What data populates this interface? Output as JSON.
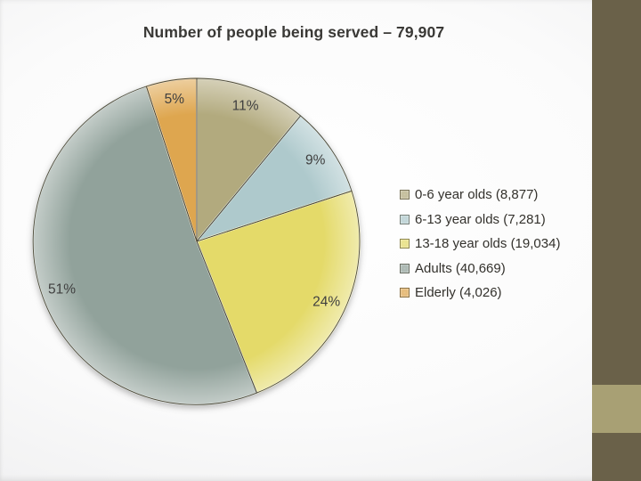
{
  "slide": {
    "accent": {
      "bar_color": "#6a6149",
      "block_color": "#a8a074"
    }
  },
  "chart_data": {
    "type": "pie",
    "title": "Number of people being served – 79,907",
    "total": 79907,
    "total_label": "79,907",
    "legend_position": "right",
    "start_angle_deg": 0,
    "direction": "clockwise",
    "label_color": "#3f3f3f",
    "outline_color": "#4d4a39",
    "slices": [
      {
        "category": "0-6 year olds",
        "label": "0-6 year olds (8,877)",
        "value": 8877,
        "percent": 11,
        "percent_label": "11%",
        "color": "#b2aa7e"
      },
      {
        "category": "6-13 year olds",
        "label": "6-13 year olds (7,281)",
        "value": 7281,
        "percent": 9,
        "percent_label": "9%",
        "color": "#aec9cc"
      },
      {
        "category": "13-18 year olds",
        "label": "13-18 year olds (19,034)",
        "value": 19034,
        "percent": 24,
        "percent_label": "24%",
        "color": "#e4da69"
      },
      {
        "category": "Adults",
        "label": "Adults (40,669)",
        "value": 40669,
        "percent": 51,
        "percent_label": "51%",
        "color": "#91a29b"
      },
      {
        "category": "Elderly",
        "label": "Elderly (4,026)",
        "value": 4026,
        "percent": 5,
        "percent_label": "5%",
        "color": "#dea64f"
      }
    ]
  }
}
